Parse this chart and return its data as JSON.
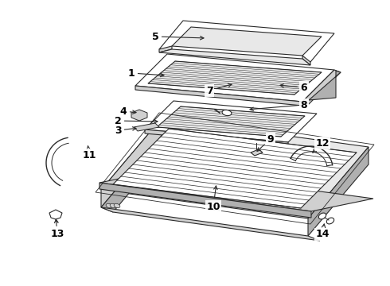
{
  "bg_color": "#ffffff",
  "line_color": "#2a2a2a",
  "label_color": "#000000",
  "figsize": [
    4.9,
    3.6
  ],
  "dpi": 100,
  "lw": 0.8
}
